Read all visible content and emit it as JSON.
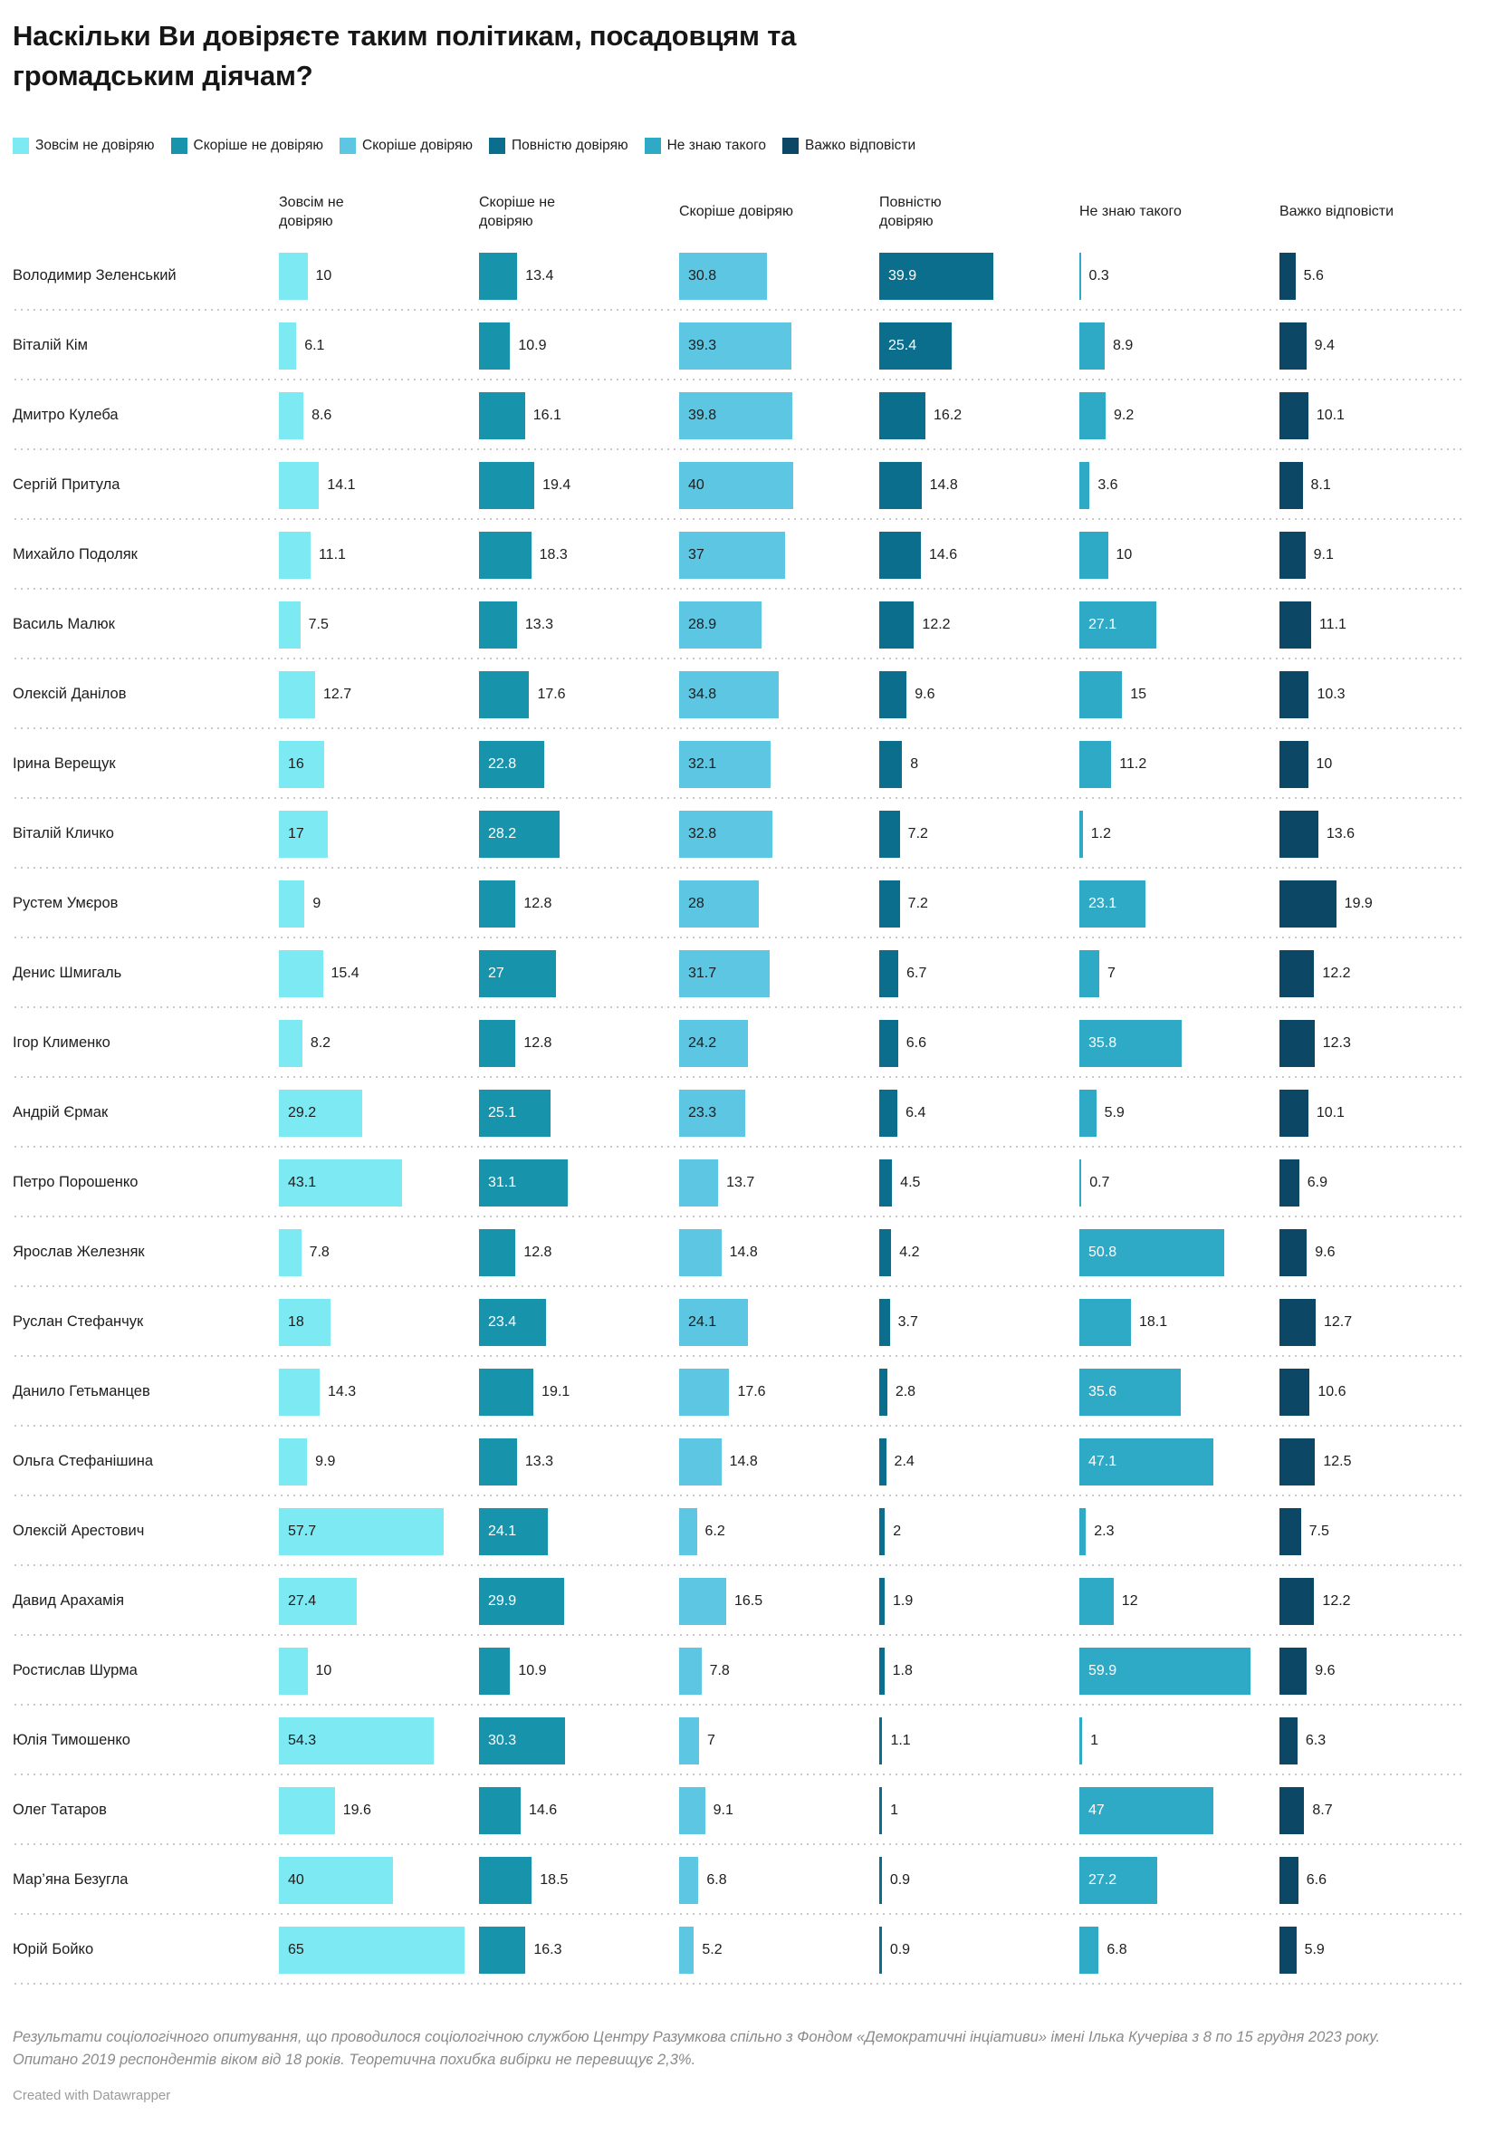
{
  "chart_data": {
    "type": "bar",
    "layout": "small-multiple-row-bars",
    "title": "Наскільки Ви довіряєте таким політикам, посадовцям та громадським діячам?",
    "value_unit": "%",
    "xlim": [
      0,
      65
    ],
    "legend_position": "top",
    "grid": false,
    "politicians": [
      "Володимир Зеленський",
      "Віталій Кім",
      "Дмитро Кулеба",
      "Сергій Притула",
      "Михайло Подоляк",
      "Василь Малюк",
      "Олексій Данілов",
      "Ірина Верещук",
      "Віталій Кличко",
      "Рустем Умєров",
      "Денис Шмигаль",
      "Ігор Клименко",
      "Андрій Єрмак",
      "Петро Порошенко",
      "Ярослав Железняк",
      "Руслан Стефанчук",
      "Данило Гетьманцев",
      "Ольга Стефанішина",
      "Олексій Арестович",
      "Давид Арахамія",
      "Ростислав Шурма",
      "Юлія Тимошенко",
      "Олег Татаров",
      "Мар’яна Безугла",
      "Юрій Бойко"
    ],
    "series": [
      {
        "name": "Зовсім не довіряю",
        "header": "Зовсім не\nдовіряю",
        "color": "#7de9f2",
        "inside_label_color": "#1d1d1d",
        "values": [
          10,
          6.1,
          8.6,
          14.1,
          11.1,
          7.5,
          12.7,
          16,
          17,
          9,
          15.4,
          8.2,
          29.2,
          43.1,
          7.8,
          18,
          14.3,
          9.9,
          57.7,
          27.4,
          10,
          54.3,
          19.6,
          40,
          65
        ]
      },
      {
        "name": "Скоріше не довіряю",
        "header": "Скоріше не\nдовіряю",
        "color": "#1793ac",
        "inside_label_color": "#ffffff",
        "values": [
          13.4,
          10.9,
          16.1,
          19.4,
          18.3,
          13.3,
          17.6,
          22.8,
          28.2,
          12.8,
          27,
          12.8,
          25.1,
          31.1,
          12.8,
          23.4,
          19.1,
          13.3,
          24.1,
          29.9,
          10.9,
          30.3,
          14.6,
          18.5,
          16.3
        ]
      },
      {
        "name": "Скоріше довіряю",
        "header": "Скоріше довіряю",
        "color": "#5cc6e3",
        "inside_label_color": "#1d1d1d",
        "values": [
          30.8,
          39.3,
          39.8,
          40,
          37,
          28.9,
          34.8,
          32.1,
          32.8,
          28,
          31.7,
          24.2,
          23.3,
          13.7,
          14.8,
          24.1,
          17.6,
          14.8,
          6.2,
          16.5,
          7.8,
          7,
          9.1,
          6.8,
          5.2
        ]
      },
      {
        "name": "Повністю довіряю",
        "header": "Повністю\nдовіряю",
        "color": "#0b6e8d",
        "inside_label_color": "#ffffff",
        "values": [
          39.9,
          25.4,
          16.2,
          14.8,
          14.6,
          12.2,
          9.6,
          8,
          7.2,
          7.2,
          6.7,
          6.6,
          6.4,
          4.5,
          4.2,
          3.7,
          2.8,
          2.4,
          2,
          1.9,
          1.8,
          1.1,
          1,
          0.9,
          0.9
        ]
      },
      {
        "name": "Не знаю такого",
        "header": "Не знаю такого",
        "color": "#2ea9c6",
        "inside_label_color": "#ffffff",
        "values": [
          0.3,
          8.9,
          9.2,
          3.6,
          10,
          27.1,
          15,
          11.2,
          1.2,
          23.1,
          7,
          35.8,
          5.9,
          0.7,
          50.8,
          18.1,
          35.6,
          47.1,
          2.3,
          12,
          59.9,
          1,
          47,
          27.2,
          6.8
        ]
      },
      {
        "name": "Важко відповісти",
        "header": "Важко відповісти",
        "color": "#0d4766",
        "inside_label_color": "#ffffff",
        "values": [
          5.6,
          9.4,
          10.1,
          8.1,
          9.1,
          11.1,
          10.3,
          10,
          13.6,
          19.9,
          12.2,
          12.3,
          10.1,
          6.9,
          9.6,
          12.7,
          10.6,
          12.5,
          7.5,
          12.2,
          9.6,
          6.3,
          8.7,
          6.6,
          5.9
        ]
      }
    ]
  },
  "notes": "Результати соціологічного опитування, що проводилося соціологічною службою Центру Разумкова спільно з Фондом «Демократичні інціативи» імені Ілька Кучеріва з 8 по 15 грудня 2023 року. Опитано 2019 респондентів віком від 18 років. Теоретична похибка вибірки не перевищує 2,3%.",
  "credit": "Created with Datawrapper"
}
